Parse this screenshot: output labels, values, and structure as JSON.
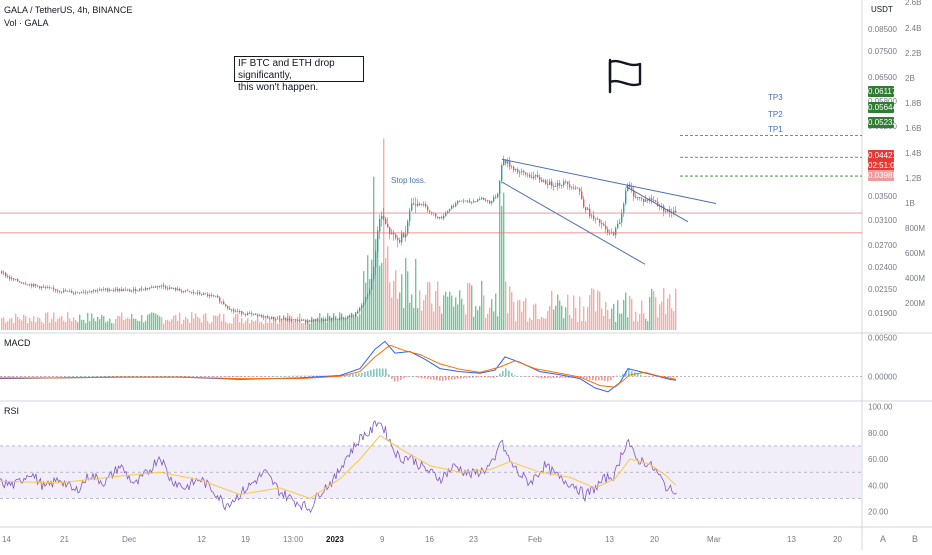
{
  "header": {
    "symbol_line": "GALA / TetherUS, 4h, BINANCE",
    "volume_label": "Vol · GALA",
    "currency": "USDT"
  },
  "annotation": {
    "line1": "IF BTC and ETH drop significantly,",
    "line2": "this won't happen."
  },
  "labels": {
    "stop_loss": "Stop loss.",
    "tp1": "TP1",
    "tp2": "TP2",
    "tp3": "TP3"
  },
  "price_tags": {
    "tp3": "0.06117",
    "tp2": "0.05644",
    "tp1": "0.05232",
    "current": "0.04421",
    "countdown": "02:51:05",
    "stop": "0.03988"
  },
  "panes": {
    "macd": "MACD",
    "rsi": "RSI"
  },
  "corner": {
    "auto": "A",
    "tv": "B"
  },
  "colors": {
    "up": "#26a69a",
    "down": "#ef5350",
    "vol_up": "#5fb98a",
    "vol_down": "#f29c9a",
    "wedge": "#4a6fb5",
    "tp_line": "#2e7d32",
    "stop_line": "#e57373",
    "macd_line": "#2962ff",
    "signal_line": "#ff6d00",
    "rsi_line": "#7e57c2",
    "rsi_ma": "#f7c948",
    "rsi_band": "#ede7f6",
    "tag_green": "#2e7d32",
    "tag_red": "#e53935",
    "tag_stop": "#ef9a9a"
  },
  "chart_data": [
    {
      "type": "candlestick",
      "title": "GALA / TetherUS, 4h, BINANCE",
      "x_ticks": [
        "14",
        "21",
        "Dec",
        "12",
        "19",
        "13:00",
        "2023",
        "9",
        "16",
        "23",
        "Feb",
        "13",
        "20",
        "Mar",
        "13",
        "20"
      ],
      "price_axis": [
        "0.08500",
        "0.07500",
        "0.06500",
        "0.05800",
        "0.05200",
        "0.04421",
        "0.03988",
        "0.03500",
        "0.03100",
        "0.02700",
        "0.02400",
        "0.02150",
        "0.01900"
      ],
      "volume_axis": [
        "2.6B",
        "2.4B",
        "2.2B",
        "2B",
        "1.8B",
        "1.6B",
        "1.4B",
        "1.2B",
        "1B",
        "800M",
        "600M",
        "400M",
        "200M"
      ],
      "price_ylim": [
        0.0186,
        0.09
      ],
      "levels": {
        "tp3": 0.06117,
        "tp2": 0.05644,
        "tp1": 0.05232,
        "current": 0.04421,
        "stop": 0.03988
      },
      "price_path": [
        [
          0,
          0.0315
        ],
        [
          8,
          0.03
        ],
        [
          18,
          0.0292
        ],
        [
          30,
          0.0285
        ],
        [
          45,
          0.0278
        ],
        [
          60,
          0.0272
        ],
        [
          75,
          0.0268
        ],
        [
          90,
          0.0272
        ],
        [
          110,
          0.0275
        ],
        [
          130,
          0.0272
        ],
        [
          150,
          0.0279
        ],
        [
          160,
          0.0283
        ],
        [
          170,
          0.0277
        ],
        [
          185,
          0.027
        ],
        [
          200,
          0.0265
        ],
        [
          215,
          0.0258
        ],
        [
          225,
          0.024
        ],
        [
          232,
          0.0228
        ],
        [
          245,
          0.0222
        ],
        [
          260,
          0.0216
        ],
        [
          275,
          0.0211
        ],
        [
          290,
          0.0208
        ],
        [
          305,
          0.0206
        ],
        [
          320,
          0.0207
        ],
        [
          340,
          0.0211
        ],
        [
          355,
          0.0219
        ],
        [
          362,
          0.0243
        ],
        [
          368,
          0.0268
        ],
        [
          372,
          0.03
        ],
        [
          376,
          0.0385
        ],
        [
          380,
          0.044
        ],
        [
          384,
          0.042
        ],
        [
          390,
          0.0395
        ],
        [
          398,
          0.038
        ],
        [
          405,
          0.0405
        ],
        [
          410,
          0.046
        ],
        [
          418,
          0.047
        ],
        [
          425,
          0.0455
        ],
        [
          432,
          0.044
        ],
        [
          440,
          0.043
        ],
        [
          450,
          0.0455
        ],
        [
          460,
          0.047
        ],
        [
          470,
          0.0465
        ],
        [
          480,
          0.0475
        ],
        [
          490,
          0.0465
        ],
        [
          497,
          0.0485
        ],
        [
          502,
          0.056
        ],
        [
          510,
          0.0545
        ],
        [
          520,
          0.053
        ],
        [
          535,
          0.052
        ],
        [
          550,
          0.0505
        ],
        [
          565,
          0.0508
        ],
        [
          578,
          0.0495
        ],
        [
          583,
          0.046
        ],
        [
          592,
          0.043
        ],
        [
          600,
          0.042
        ],
        [
          608,
          0.0395
        ],
        [
          614,
          0.04
        ],
        [
          620,
          0.043
        ],
        [
          626,
          0.0505
        ],
        [
          634,
          0.048
        ],
        [
          642,
          0.047
        ],
        [
          652,
          0.0472
        ],
        [
          660,
          0.0455
        ],
        [
          668,
          0.0445
        ],
        [
          676,
          0.0442
        ]
      ],
      "wedge_lines": [
        {
          "from": [
            502,
            0.056
          ],
          "to": [
            716,
            0.0463
          ]
        },
        {
          "from": [
            502,
            0.051
          ],
          "to": [
            645,
            0.033
          ]
        },
        {
          "from": [
            626,
            0.05
          ],
          "to": [
            688,
            0.0423
          ]
        }
      ]
    },
    {
      "type": "line",
      "title": "MACD",
      "y_ticks": [
        "0.00500",
        "0.00000"
      ],
      "ylim": [
        -0.0028,
        0.0052
      ],
      "series": [
        {
          "name": "MACD",
          "points": [
            [
              0,
              -0.0003
            ],
            [
              60,
              -0.0002
            ],
            [
              120,
              -0.0001
            ],
            [
              180,
              -0.0001
            ],
            [
              240,
              -0.0004
            ],
            [
              300,
              -0.0002
            ],
            [
              340,
              0.0001
            ],
            [
              360,
              0.001
            ],
            [
              375,
              0.0035
            ],
            [
              385,
              0.0045
            ],
            [
              395,
              0.003
            ],
            [
              410,
              0.0032
            ],
            [
              425,
              0.0022
            ],
            [
              440,
              0.001
            ],
            [
              460,
              0.0006
            ],
            [
              480,
              0.0004
            ],
            [
              495,
              0.0008
            ],
            [
              505,
              0.0025
            ],
            [
              520,
              0.0018
            ],
            [
              540,
              0.0006
            ],
            [
              560,
              0.0002
            ],
            [
              580,
              -0.0003
            ],
            [
              595,
              -0.0015
            ],
            [
              608,
              -0.002
            ],
            [
              620,
              -0.0008
            ],
            [
              628,
              0.001
            ],
            [
              640,
              0.0006
            ],
            [
              655,
              0.0001
            ],
            [
              670,
              -0.0004
            ],
            [
              676,
              -0.0005
            ]
          ]
        },
        {
          "name": "Signal",
          "points": [
            [
              0,
              -0.0002
            ],
            [
              60,
              -0.0002
            ],
            [
              120,
              -0.0001
            ],
            [
              180,
              -0.0001
            ],
            [
              240,
              -0.0003
            ],
            [
              300,
              -0.0003
            ],
            [
              340,
              0.0
            ],
            [
              360,
              0.0006
            ],
            [
              375,
              0.0025
            ],
            [
              390,
              0.004
            ],
            [
              405,
              0.0033
            ],
            [
              420,
              0.0028
            ],
            [
              440,
              0.0016
            ],
            [
              460,
              0.0009
            ],
            [
              480,
              0.0005
            ],
            [
              500,
              0.0012
            ],
            [
              515,
              0.002
            ],
            [
              535,
              0.001
            ],
            [
              560,
              0.0004
            ],
            [
              580,
              -0.0001
            ],
            [
              600,
              -0.0012
            ],
            [
              615,
              -0.0014
            ],
            [
              630,
              0.0002
            ],
            [
              645,
              0.0005
            ],
            [
              660,
              0.0
            ],
            [
              676,
              -0.0004
            ]
          ]
        }
      ]
    },
    {
      "type": "line",
      "title": "RSI",
      "y_ticks": [
        "100.00",
        "80.00",
        "60.00",
        "40.00",
        "20.00"
      ],
      "ylim": [
        12,
        102
      ],
      "bands": [
        30,
        50,
        70
      ],
      "series": [
        {
          "name": "RSI",
          "points": [
            [
              0,
              42
            ],
            [
              15,
              40
            ],
            [
              30,
              50
            ],
            [
              45,
              38
            ],
            [
              60,
              45
            ],
            [
              75,
              35
            ],
            [
              90,
              48
            ],
            [
              105,
              42
            ],
            [
              120,
              55
            ],
            [
              135,
              40
            ],
            [
              150,
              52
            ],
            [
              160,
              63
            ],
            [
              170,
              45
            ],
            [
              185,
              38
            ],
            [
              200,
              45
            ],
            [
              215,
              35
            ],
            [
              225,
              25
            ],
            [
              235,
              30
            ],
            [
              250,
              40
            ],
            [
              265,
              50
            ],
            [
              280,
              35
            ],
            [
              295,
              28
            ],
            [
              310,
              22
            ],
            [
              320,
              35
            ],
            [
              335,
              45
            ],
            [
              345,
              60
            ],
            [
              355,
              70
            ],
            [
              362,
              78
            ],
            [
              370,
              80
            ],
            [
              378,
              90
            ],
            [
              385,
              82
            ],
            [
              392,
              70
            ],
            [
              400,
              60
            ],
            [
              410,
              62
            ],
            [
              420,
              55
            ],
            [
              430,
              50
            ],
            [
              440,
              45
            ],
            [
              455,
              55
            ],
            [
              470,
              48
            ],
            [
              485,
              52
            ],
            [
              495,
              58
            ],
            [
              500,
              75
            ],
            [
              510,
              58
            ],
            [
              520,
              48
            ],
            [
              530,
              42
            ],
            [
              545,
              55
            ],
            [
              560,
              45
            ],
            [
              575,
              40
            ],
            [
              585,
              32
            ],
            [
              595,
              38
            ],
            [
              605,
              45
            ],
            [
              615,
              48
            ],
            [
              622,
              65
            ],
            [
              628,
              75
            ],
            [
              635,
              60
            ],
            [
              645,
              58
            ],
            [
              655,
              52
            ],
            [
              665,
              40
            ],
            [
              672,
              35
            ],
            [
              676,
              38
            ]
          ]
        },
        {
          "name": "MA",
          "points": [
            [
              0,
              43
            ],
            [
              60,
              42
            ],
            [
              120,
              47
            ],
            [
              160,
              50
            ],
            [
              200,
              44
            ],
            [
              240,
              33
            ],
            [
              280,
              38
            ],
            [
              310,
              30
            ],
            [
              340,
              45
            ],
            [
              360,
              60
            ],
            [
              380,
              78
            ],
            [
              400,
              68
            ],
            [
              430,
              55
            ],
            [
              460,
              50
            ],
            [
              490,
              52
            ],
            [
              510,
              58
            ],
            [
              540,
              50
            ],
            [
              570,
              46
            ],
            [
              595,
              38
            ],
            [
              615,
              45
            ],
            [
              630,
              60
            ],
            [
              650,
              56
            ],
            [
              665,
              48
            ],
            [
              676,
              40
            ]
          ]
        }
      ]
    }
  ]
}
